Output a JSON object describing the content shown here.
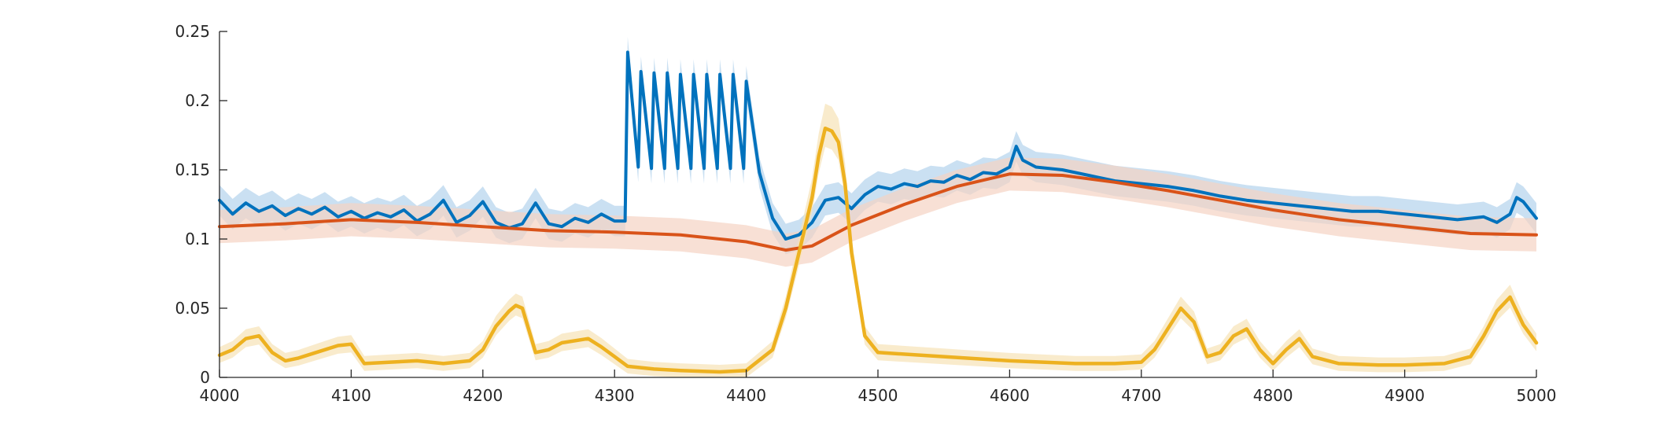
{
  "chart_data": {
    "type": "line",
    "title": "",
    "xlabel": "",
    "ylabel": "",
    "xlim": [
      4000,
      5000
    ],
    "ylim": [
      0,
      0.25
    ],
    "xticks": [
      4000,
      4100,
      4200,
      4300,
      4400,
      4500,
      4600,
      4700,
      4800,
      4900,
      5000
    ],
    "yticks": [
      0,
      0.05,
      0.1,
      0.15,
      0.2,
      0.25
    ],
    "xtick_labels": [
      "4000",
      "4100",
      "4200",
      "4300",
      "4400",
      "4500",
      "4600",
      "4700",
      "4800",
      "4900",
      "5000"
    ],
    "ytick_labels": [
      "0",
      "0.05",
      "0.1",
      "0.15",
      "0.2",
      "0.25"
    ],
    "grid": false,
    "legend": "none",
    "series": [
      {
        "color": "#0072BD",
        "band_color": "#B8D6EE",
        "x": [
          4000,
          4010,
          4020,
          4030,
          4040,
          4050,
          4060,
          4070,
          4080,
          4090,
          4100,
          4110,
          4120,
          4130,
          4140,
          4150,
          4160,
          4170,
          4180,
          4190,
          4200,
          4210,
          4220,
          4230,
          4240,
          4250,
          4260,
          4270,
          4280,
          4290,
          4300,
          4308,
          4310,
          4318,
          4320,
          4328,
          4330,
          4338,
          4340,
          4348,
          4350,
          4358,
          4360,
          4368,
          4370,
          4378,
          4380,
          4388,
          4390,
          4398,
          4400,
          4410,
          4420,
          4430,
          4440,
          4450,
          4460,
          4470,
          4480,
          4490,
          4500,
          4510,
          4520,
          4530,
          4540,
          4550,
          4560,
          4570,
          4580,
          4590,
          4600,
          4605,
          4610,
          4620,
          4640,
          4660,
          4680,
          4700,
          4720,
          4740,
          4760,
          4780,
          4800,
          4820,
          4840,
          4860,
          4880,
          4900,
          4920,
          4940,
          4960,
          4970,
          4980,
          4985,
          4990,
          5000
        ],
        "y": [
          0.128,
          0.118,
          0.126,
          0.12,
          0.124,
          0.117,
          0.122,
          0.118,
          0.123,
          0.116,
          0.12,
          0.115,
          0.119,
          0.116,
          0.121,
          0.113,
          0.118,
          0.128,
          0.112,
          0.117,
          0.127,
          0.112,
          0.108,
          0.111,
          0.126,
          0.111,
          0.109,
          0.115,
          0.112,
          0.118,
          0.113,
          0.113,
          0.235,
          0.152,
          0.221,
          0.151,
          0.22,
          0.151,
          0.22,
          0.151,
          0.219,
          0.151,
          0.219,
          0.151,
          0.219,
          0.151,
          0.219,
          0.151,
          0.219,
          0.151,
          0.214,
          0.148,
          0.115,
          0.1,
          0.103,
          0.112,
          0.128,
          0.13,
          0.122,
          0.132,
          0.138,
          0.136,
          0.14,
          0.138,
          0.142,
          0.141,
          0.146,
          0.143,
          0.148,
          0.147,
          0.152,
          0.167,
          0.157,
          0.152,
          0.15,
          0.146,
          0.142,
          0.14,
          0.138,
          0.135,
          0.131,
          0.128,
          0.126,
          0.124,
          0.122,
          0.12,
          0.12,
          0.118,
          0.116,
          0.114,
          0.116,
          0.112,
          0.118,
          0.13,
          0.127,
          0.115
        ]
      },
      {
        "color": "#D95319",
        "band_color": "#F5D3C3",
        "x": [
          4000,
          4050,
          4100,
          4150,
          4200,
          4250,
          4300,
          4350,
          4400,
          4430,
          4450,
          4480,
          4520,
          4560,
          4600,
          4640,
          4680,
          4720,
          4760,
          4800,
          4850,
          4900,
          4950,
          5000
        ],
        "y": [
          0.109,
          0.111,
          0.114,
          0.112,
          0.109,
          0.106,
          0.105,
          0.103,
          0.098,
          0.092,
          0.095,
          0.11,
          0.125,
          0.138,
          0.147,
          0.146,
          0.141,
          0.135,
          0.128,
          0.121,
          0.114,
          0.109,
          0.104,
          0.103
        ]
      },
      {
        "color": "#EDB120",
        "band_color": "#F6E3B6",
        "x": [
          4000,
          4010,
          4020,
          4030,
          4040,
          4050,
          4060,
          4080,
          4090,
          4100,
          4110,
          4130,
          4150,
          4170,
          4190,
          4200,
          4210,
          4220,
          4225,
          4230,
          4240,
          4250,
          4260,
          4280,
          4290,
          4300,
          4310,
          4330,
          4350,
          4380,
          4400,
          4420,
          4430,
          4440,
          4450,
          4455,
          4460,
          4465,
          4470,
          4475,
          4480,
          4490,
          4500,
          4550,
          4600,
          4650,
          4680,
          4700,
          4710,
          4720,
          4730,
          4740,
          4750,
          4760,
          4770,
          4780,
          4790,
          4800,
          4810,
          4820,
          4830,
          4850,
          4880,
          4900,
          4930,
          4950,
          4960,
          4970,
          4980,
          4990,
          5000
        ],
        "y": [
          0.016,
          0.02,
          0.028,
          0.03,
          0.018,
          0.012,
          0.014,
          0.02,
          0.023,
          0.024,
          0.01,
          0.011,
          0.012,
          0.01,
          0.012,
          0.02,
          0.037,
          0.048,
          0.052,
          0.05,
          0.018,
          0.02,
          0.025,
          0.028,
          0.022,
          0.015,
          0.008,
          0.006,
          0.005,
          0.004,
          0.005,
          0.02,
          0.05,
          0.09,
          0.13,
          0.16,
          0.18,
          0.178,
          0.17,
          0.14,
          0.09,
          0.03,
          0.018,
          0.015,
          0.012,
          0.01,
          0.01,
          0.011,
          0.02,
          0.035,
          0.05,
          0.04,
          0.015,
          0.018,
          0.03,
          0.035,
          0.02,
          0.01,
          0.02,
          0.028,
          0.015,
          0.01,
          0.009,
          0.009,
          0.01,
          0.015,
          0.03,
          0.048,
          0.058,
          0.038,
          0.025
        ]
      }
    ]
  }
}
